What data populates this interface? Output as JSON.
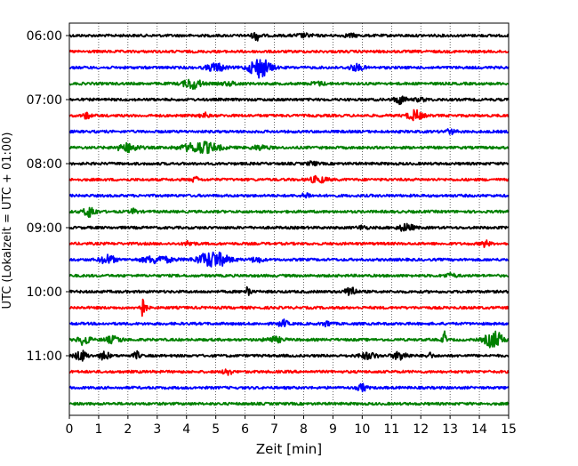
{
  "chart_data": {
    "type": "line",
    "title": "",
    "xlabel": "Zeit  [min]",
    "ylabel": "UTC (Lokalzeit = UTC + 01:00)",
    "xlim": [
      0,
      15
    ],
    "x_ticks": [
      "0",
      "1",
      "2",
      "3",
      "4",
      "5",
      "6",
      "7",
      "8",
      "9",
      "10",
      "11",
      "12",
      "13",
      "14",
      "15"
    ],
    "y_ticks": [
      "06:00",
      "07:00",
      "08:00",
      "09:00",
      "10:00",
      "11:00"
    ],
    "grid": "vertical dotted at each minute",
    "trace_interval_minutes": 15,
    "start_time": "06:00",
    "trace_colors": [
      "#000000",
      "#ff0000",
      "#0000ff",
      "#008000"
    ],
    "series": [
      {
        "start": "06:00",
        "color": "#000000",
        "events": [
          {
            "t": 6.4,
            "a": 0.45,
            "w": 0.15
          },
          {
            "t": 8.0,
            "a": 0.15,
            "w": 0.3
          },
          {
            "t": 9.6,
            "a": 0.15,
            "w": 0.2
          }
        ]
      },
      {
        "start": "06:15",
        "color": "#ff0000",
        "events": []
      },
      {
        "start": "06:30",
        "color": "#0000ff",
        "events": [
          {
            "t": 5.0,
            "a": 0.4,
            "w": 0.3
          },
          {
            "t": 6.5,
            "a": 1.0,
            "w": 0.35
          },
          {
            "t": 9.8,
            "a": 0.3,
            "w": 0.25
          }
        ]
      },
      {
        "start": "06:45",
        "color": "#008000",
        "events": [
          {
            "t": 4.2,
            "a": 0.5,
            "w": 0.3
          },
          {
            "t": 5.5,
            "a": 0.15,
            "w": 0.3
          },
          {
            "t": 8.5,
            "a": 0.15,
            "w": 0.25
          }
        ]
      },
      {
        "start": "07:00",
        "color": "#000000",
        "events": [
          {
            "t": 11.3,
            "a": 0.4,
            "w": 0.2
          },
          {
            "t": 12.0,
            "a": 0.15,
            "w": 0.2
          }
        ]
      },
      {
        "start": "07:15",
        "color": "#ff0000",
        "events": [
          {
            "t": 0.6,
            "a": 0.3,
            "w": 0.12
          },
          {
            "t": 4.6,
            "a": 0.3,
            "w": 0.12
          },
          {
            "t": 11.8,
            "a": 0.5,
            "w": 0.25
          }
        ]
      },
      {
        "start": "07:30",
        "color": "#0000ff",
        "events": [
          {
            "t": 13.0,
            "a": 0.2,
            "w": 0.2
          }
        ]
      },
      {
        "start": "07:45",
        "color": "#008000",
        "events": [
          {
            "t": 2.0,
            "a": 0.4,
            "w": 0.35
          },
          {
            "t": 4.5,
            "a": 0.55,
            "w": 0.6
          },
          {
            "t": 6.5,
            "a": 0.2,
            "w": 0.3
          }
        ]
      },
      {
        "start": "08:00",
        "color": "#000000",
        "events": [
          {
            "t": 8.3,
            "a": 0.2,
            "w": 0.15
          }
        ]
      },
      {
        "start": "08:15",
        "color": "#ff0000",
        "events": [
          {
            "t": 4.3,
            "a": 0.25,
            "w": 0.12
          },
          {
            "t": 8.5,
            "a": 0.3,
            "w": 0.3
          }
        ]
      },
      {
        "start": "08:30",
        "color": "#0000ff",
        "events": [
          {
            "t": 8.1,
            "a": 0.25,
            "w": 0.15
          }
        ]
      },
      {
        "start": "08:45",
        "color": "#008000",
        "events": [
          {
            "t": 0.7,
            "a": 0.55,
            "w": 0.2
          },
          {
            "t": 2.2,
            "a": 0.3,
            "w": 0.1
          }
        ]
      },
      {
        "start": "09:00",
        "color": "#000000",
        "events": [
          {
            "t": 10.0,
            "a": 0.2,
            "w": 0.15
          },
          {
            "t": 11.5,
            "a": 0.35,
            "w": 0.25
          }
        ]
      },
      {
        "start": "09:15",
        "color": "#ff0000",
        "events": [
          {
            "t": 4.1,
            "a": 0.25,
            "w": 0.15
          },
          {
            "t": 14.2,
            "a": 0.3,
            "w": 0.15
          }
        ]
      },
      {
        "start": "09:30",
        "color": "#0000ff",
        "events": [
          {
            "t": 1.3,
            "a": 0.45,
            "w": 0.25
          },
          {
            "t": 3.0,
            "a": 0.35,
            "w": 0.5
          },
          {
            "t": 4.9,
            "a": 0.8,
            "w": 0.5
          },
          {
            "t": 6.4,
            "a": 0.25,
            "w": 0.2
          }
        ]
      },
      {
        "start": "09:45",
        "color": "#008000",
        "events": [
          {
            "t": 13.0,
            "a": 0.2,
            "w": 0.2
          }
        ]
      },
      {
        "start": "10:00",
        "color": "#000000",
        "events": [
          {
            "t": 6.1,
            "a": 0.75,
            "w": 0.08
          },
          {
            "t": 9.6,
            "a": 0.7,
            "w": 0.15
          }
        ]
      },
      {
        "start": "10:15",
        "color": "#ff0000",
        "events": [
          {
            "t": 2.5,
            "a": 0.9,
            "w": 0.12
          }
        ]
      },
      {
        "start": "10:30",
        "color": "#0000ff",
        "events": [
          {
            "t": 7.3,
            "a": 0.35,
            "w": 0.15
          },
          {
            "t": 8.8,
            "a": 0.25,
            "w": 0.15
          }
        ]
      },
      {
        "start": "10:45",
        "color": "#008000",
        "events": [
          {
            "t": 0.5,
            "a": 0.5,
            "w": 0.2
          },
          {
            "t": 1.5,
            "a": 0.3,
            "w": 0.3
          },
          {
            "t": 7.0,
            "a": 0.25,
            "w": 0.3
          },
          {
            "t": 12.8,
            "a": 0.85,
            "w": 0.06
          },
          {
            "t": 14.5,
            "a": 0.85,
            "w": 0.3
          }
        ]
      },
      {
        "start": "11:00",
        "color": "#000000",
        "events": [
          {
            "t": 0.4,
            "a": 0.5,
            "w": 0.2
          },
          {
            "t": 1.2,
            "a": 0.45,
            "w": 0.15
          },
          {
            "t": 2.3,
            "a": 0.4,
            "w": 0.1
          },
          {
            "t": 10.2,
            "a": 0.3,
            "w": 0.3
          },
          {
            "t": 11.3,
            "a": 0.4,
            "w": 0.25
          },
          {
            "t": 12.3,
            "a": 0.3,
            "w": 0.1
          }
        ]
      },
      {
        "start": "11:15",
        "color": "#ff0000",
        "events": [
          {
            "t": 5.4,
            "a": 0.45,
            "w": 0.12
          }
        ]
      },
      {
        "start": "11:30",
        "color": "#0000ff",
        "events": [
          {
            "t": 10.0,
            "a": 0.35,
            "w": 0.15
          }
        ]
      },
      {
        "start": "11:45",
        "color": "#008000",
        "events": []
      }
    ]
  }
}
